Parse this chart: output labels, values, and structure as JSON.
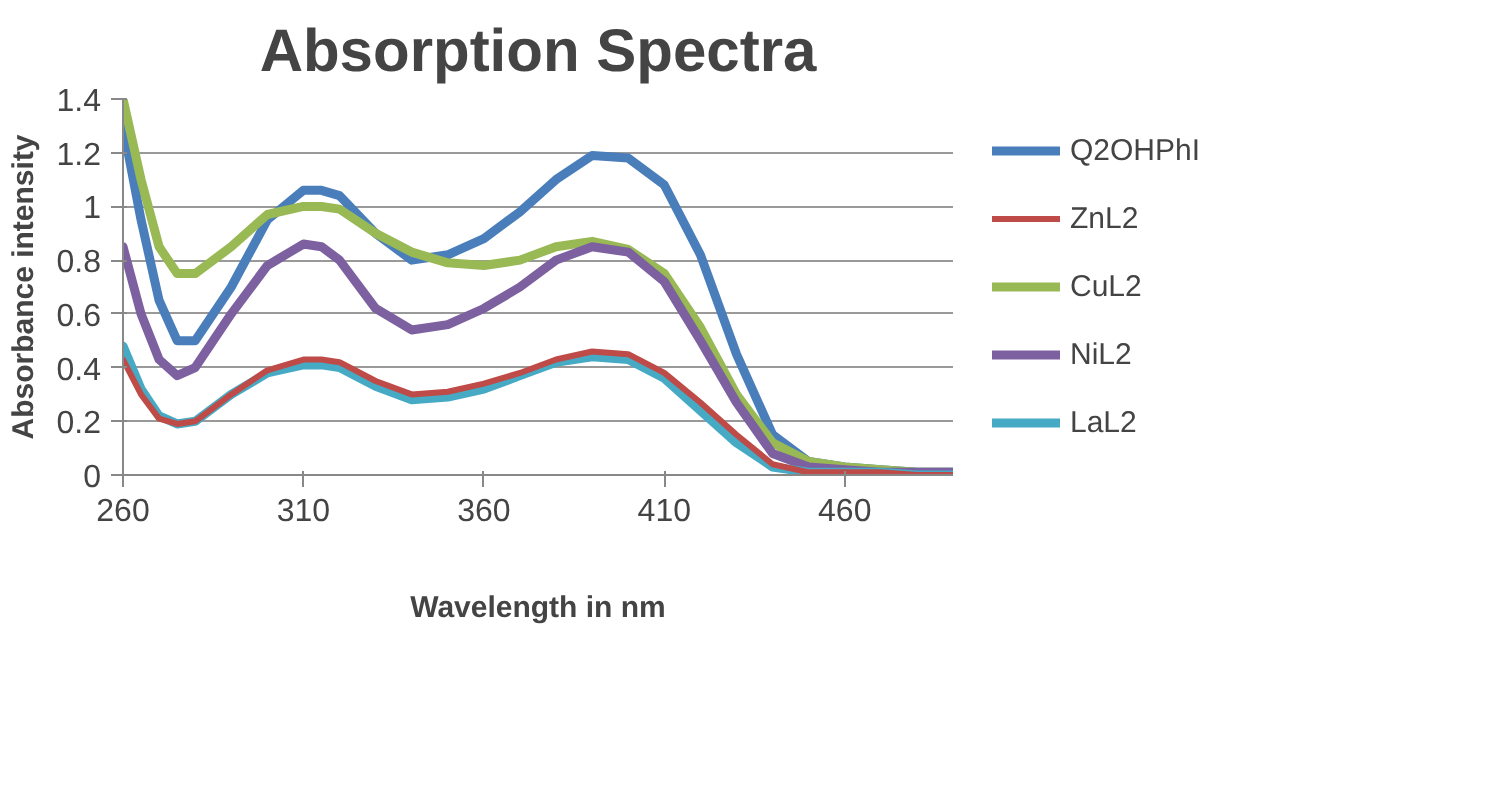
{
  "chart_data": {
    "type": "line",
    "title": "Absorption Spectra",
    "xlabel": "Wavelength in nm",
    "ylabel": "Absorbance intensity",
    "x": [
      260,
      265,
      270,
      275,
      280,
      290,
      300,
      310,
      315,
      320,
      330,
      340,
      350,
      360,
      370,
      380,
      390,
      400,
      410,
      420,
      430,
      440,
      450,
      460,
      470,
      480,
      490
    ],
    "xlim": [
      260,
      490
    ],
    "xticks": [
      260,
      310,
      360,
      410,
      460
    ],
    "ylim": [
      0,
      1.4
    ],
    "yticks": [
      0,
      0.2,
      0.4,
      0.6,
      0.8,
      1,
      1.2,
      1.4
    ],
    "grid": "y",
    "legend": "right",
    "line_style": "solid",
    "marker": "none",
    "series": [
      {
        "name": "Q2OHPhI",
        "color": "#4a7ebb",
        "values": [
          1.3,
          0.95,
          0.65,
          0.5,
          0.5,
          0.7,
          0.95,
          1.06,
          1.06,
          1.04,
          0.9,
          0.8,
          0.82,
          0.88,
          0.98,
          1.1,
          1.19,
          1.18,
          1.08,
          0.82,
          0.45,
          0.15,
          0.05,
          0.03,
          0.02,
          0.01,
          0.01
        ]
      },
      {
        "name": "ZnL2",
        "color": "#be4b48",
        "values": [
          0.43,
          0.3,
          0.21,
          0.19,
          0.2,
          0.3,
          0.39,
          0.43,
          0.43,
          0.42,
          0.35,
          0.3,
          0.31,
          0.34,
          0.38,
          0.43,
          0.46,
          0.45,
          0.38,
          0.27,
          0.15,
          0.04,
          0.01,
          0.01,
          0.01,
          0.0,
          0.0
        ]
      },
      {
        "name": "CuL2",
        "color": "#98b954",
        "values": [
          1.4,
          1.1,
          0.85,
          0.75,
          0.75,
          0.85,
          0.97,
          1.0,
          1.0,
          0.99,
          0.9,
          0.83,
          0.79,
          0.78,
          0.8,
          0.85,
          0.87,
          0.84,
          0.75,
          0.55,
          0.3,
          0.12,
          0.05,
          0.03,
          0.02,
          0.01,
          0.01
        ]
      },
      {
        "name": "NiL2",
        "color": "#7d60a0",
        "values": [
          0.85,
          0.6,
          0.43,
          0.37,
          0.4,
          0.6,
          0.78,
          0.86,
          0.85,
          0.8,
          0.62,
          0.54,
          0.56,
          0.62,
          0.7,
          0.8,
          0.85,
          0.83,
          0.72,
          0.5,
          0.27,
          0.08,
          0.03,
          0.02,
          0.01,
          0.01,
          0.01
        ]
      },
      {
        "name": "LaL2",
        "color": "#46aac5",
        "values": [
          0.48,
          0.32,
          0.22,
          0.19,
          0.2,
          0.3,
          0.38,
          0.41,
          0.41,
          0.4,
          0.33,
          0.28,
          0.29,
          0.32,
          0.37,
          0.42,
          0.44,
          0.43,
          0.36,
          0.24,
          0.12,
          0.03,
          0.01,
          0.01,
          0.01,
          0.0,
          0.0
        ]
      }
    ]
  }
}
